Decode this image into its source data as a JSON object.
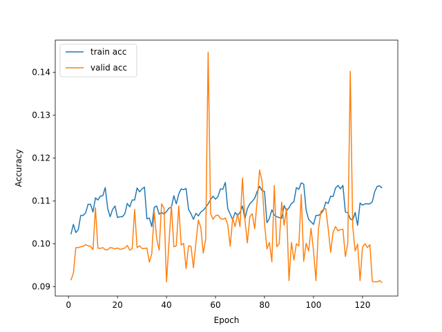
{
  "chart_data": {
    "type": "line",
    "title": "",
    "xlabel": "Epoch",
    "ylabel": "Accuracy",
    "xlim": [
      -5.4,
      134.4
    ],
    "ylim": [
      0.0878,
      0.1475
    ],
    "xticks": [
      0,
      20,
      40,
      60,
      80,
      100,
      120
    ],
    "xtick_labels": [
      "0",
      "20",
      "40",
      "60",
      "80",
      "100",
      "120"
    ],
    "yticks": [
      0.09,
      0.1,
      0.11,
      0.12,
      0.13,
      0.14
    ],
    "ytick_labels": [
      "0.09",
      "0.10",
      "0.11",
      "0.12",
      "0.13",
      "0.14"
    ],
    "grid": false,
    "legend": "top-left",
    "x": [
      1,
      2,
      3,
      4,
      5,
      6,
      7,
      8,
      9,
      10,
      11,
      12,
      13,
      14,
      15,
      16,
      17,
      18,
      19,
      20,
      21,
      22,
      23,
      24,
      25,
      26,
      27,
      28,
      29,
      30,
      31,
      32,
      33,
      34,
      35,
      36,
      37,
      38,
      39,
      40,
      41,
      42,
      43,
      44,
      45,
      46,
      47,
      48,
      49,
      50,
      51,
      52,
      53,
      54,
      55,
      56,
      57,
      58,
      59,
      60,
      61,
      62,
      63,
      64,
      65,
      66,
      67,
      68,
      69,
      70,
      71,
      72,
      73,
      74,
      75,
      76,
      77,
      78,
      79,
      80,
      81,
      82,
      83,
      84,
      85,
      86,
      87,
      88,
      89,
      90,
      91,
      92,
      93,
      94,
      95,
      96,
      97,
      98,
      99,
      100,
      101,
      102,
      103,
      104,
      105,
      106,
      107,
      108,
      109,
      110,
      111,
      112,
      113,
      114,
      115,
      116,
      117,
      118,
      119,
      120,
      121,
      122,
      123,
      124,
      125,
      126,
      127,
      128
    ],
    "series": [
      {
        "name": "train acc",
        "color": "#1f77b4",
        "values": [
          0.1022,
          0.1045,
          0.1026,
          0.1033,
          0.1066,
          0.1066,
          0.1072,
          0.1092,
          0.1092,
          0.1074,
          0.1107,
          0.1102,
          0.1111,
          0.1112,
          0.1131,
          0.1082,
          0.1063,
          0.108,
          0.1088,
          0.1061,
          0.1063,
          0.1063,
          0.107,
          0.1094,
          0.1086,
          0.1102,
          0.1102,
          0.113,
          0.1121,
          0.1128,
          0.1132,
          0.1058,
          0.106,
          0.104,
          0.1085,
          0.1088,
          0.1069,
          0.1073,
          0.1069,
          0.1075,
          0.1083,
          0.1085,
          0.1112,
          0.1093,
          0.1116,
          0.1128,
          0.1126,
          0.1129,
          0.108,
          0.107,
          0.1057,
          0.1071,
          0.1065,
          0.1074,
          0.1078,
          0.1085,
          0.1093,
          0.1103,
          0.1111,
          0.1104,
          0.111,
          0.1128,
          0.1127,
          0.1143,
          0.1082,
          0.1069,
          0.1056,
          0.1073,
          0.1066,
          0.1073,
          0.1088,
          0.1058,
          0.1082,
          0.1093,
          0.1099,
          0.1106,
          0.1122,
          0.1134,
          0.1124,
          0.1122,
          0.1049,
          0.1059,
          0.1079,
          0.1067,
          0.1063,
          0.1061,
          0.1059,
          0.1089,
          0.1077,
          0.1084,
          0.1094,
          0.1098,
          0.1131,
          0.1127,
          0.1142,
          0.1139,
          0.1078,
          0.1057,
          0.1051,
          0.1045,
          0.1066,
          0.1066,
          0.107,
          0.1078,
          0.1097,
          0.1094,
          0.1111,
          0.111,
          0.113,
          0.1136,
          0.1128,
          0.1136,
          0.1074,
          0.1072,
          0.1058,
          0.1055,
          0.1073,
          0.1043,
          0.1095,
          0.109,
          0.1093,
          0.1093,
          0.1093,
          0.1098,
          0.1122,
          0.1134,
          0.1135,
          0.113
        ]
      },
      {
        "name": "valid acc",
        "color": "#ff7f0e",
        "values": [
          0.0915,
          0.0931,
          0.0991,
          0.0991,
          0.0993,
          0.0994,
          0.0998,
          0.0995,
          0.0994,
          0.0986,
          0.1084,
          0.099,
          0.0989,
          0.0991,
          0.0986,
          0.0986,
          0.0991,
          0.099,
          0.0988,
          0.099,
          0.0987,
          0.0988,
          0.099,
          0.0996,
          0.0985,
          0.0989,
          0.108,
          0.0991,
          0.0995,
          0.0989,
          0.0989,
          0.099,
          0.0957,
          0.0977,
          0.1075,
          0.1012,
          0.0985,
          0.1093,
          0.1083,
          0.0911,
          0.1001,
          0.1089,
          0.0993,
          0.0995,
          0.1088,
          0.0997,
          0.1001,
          0.0942,
          0.0995,
          0.0994,
          0.0944,
          0.1002,
          0.1055,
          0.1038,
          0.0978,
          0.1011,
          0.1447,
          0.107,
          0.1057,
          0.1065,
          0.1067,
          0.1059,
          0.1057,
          0.106,
          0.1045,
          0.0994,
          0.106,
          0.104,
          0.107,
          0.104,
          0.1153,
          0.1056,
          0.1002,
          0.1063,
          0.107,
          0.1035,
          0.11,
          0.1172,
          0.1146,
          0.1048,
          0.0988,
          0.1003,
          0.0958,
          0.1136,
          0.0993,
          0.1,
          0.1097,
          0.1043,
          0.1082,
          0.0914,
          0.1003,
          0.0962,
          0.1,
          0.0995,
          0.1115,
          0.0959,
          0.1001,
          0.0983,
          0.1036,
          0.0984,
          0.0914,
          0.1033,
          0.1075,
          0.108,
          0.1082,
          0.1035,
          0.098,
          0.1027,
          0.104,
          0.103,
          0.1033,
          0.1034,
          0.097,
          0.1002,
          0.1402,
          0.104,
          0.0983,
          0.0999,
          0.0914,
          0.0992,
          0.1,
          0.0991,
          0.0998,
          0.0912,
          0.0911,
          0.0911,
          0.0914,
          0.0909
        ]
      }
    ]
  }
}
